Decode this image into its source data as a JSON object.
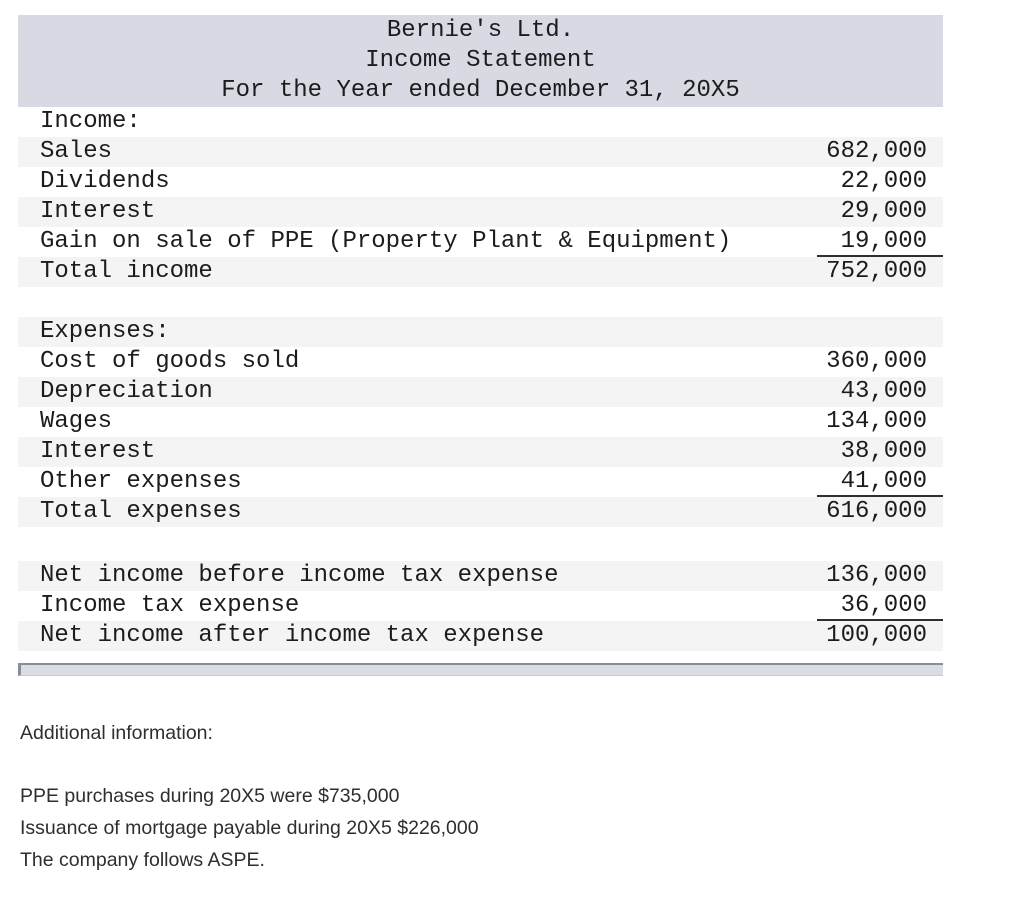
{
  "header": {
    "company": "Bernie's Ltd.",
    "title": "Income Statement",
    "period": "For the Year ended December 31, 20X5"
  },
  "statement": {
    "rows": [
      {
        "label": "Income:",
        "amount": "",
        "shaded": false
      },
      {
        "label": "Sales",
        "amount": "682,000",
        "shaded": true
      },
      {
        "label": "Dividends",
        "amount": "22,000",
        "shaded": false
      },
      {
        "label": "Interest",
        "amount": "29,000",
        "shaded": true
      },
      {
        "label": "Gain on sale of PPE (Property Plant & Equipment)",
        "amount": "19,000",
        "shaded": false,
        "underline": true
      },
      {
        "label": "Total income",
        "amount": "752,000",
        "shaded": true
      },
      {
        "type": "spacer",
        "height": 30
      },
      {
        "label": "Expenses:",
        "amount": "",
        "shaded": true
      },
      {
        "label": "Cost of goods sold",
        "amount": "360,000",
        "shaded": false
      },
      {
        "label": "Depreciation",
        "amount": "43,000",
        "shaded": true
      },
      {
        "label": "Wages",
        "amount": "134,000",
        "shaded": false
      },
      {
        "label": "Interest",
        "amount": "38,000",
        "shaded": true
      },
      {
        "label": "Other expenses",
        "amount": "41,000",
        "shaded": false,
        "underline": true
      },
      {
        "label": "Total expenses",
        "amount": "616,000",
        "shaded": true
      },
      {
        "type": "spacer",
        "height": 34
      },
      {
        "label": "Net income before income tax expense",
        "amount": "136,000",
        "shaded": true
      },
      {
        "label": "Income tax expense",
        "amount": "36,000",
        "shaded": false,
        "underline": true
      },
      {
        "label": "Net income after income tax expense",
        "amount": "100,000",
        "shaded": true
      }
    ]
  },
  "notes": {
    "heading": "Additional information:",
    "lines": [
      "PPE purchases during 20X5 were $735,000",
      "Issuance of mortgage payable during 20X5 $226,000",
      "The company follows ASPE."
    ]
  },
  "colors": {
    "header_bg": "#d7dae3",
    "row_shade": "#f4f4f4",
    "table_text": "#1c1c1c",
    "underline": "#2f2f2f",
    "scrollbar_fill": "#dadde4",
    "scrollbar_border": "#878e99",
    "notes_text": "#2e2e2e"
  }
}
